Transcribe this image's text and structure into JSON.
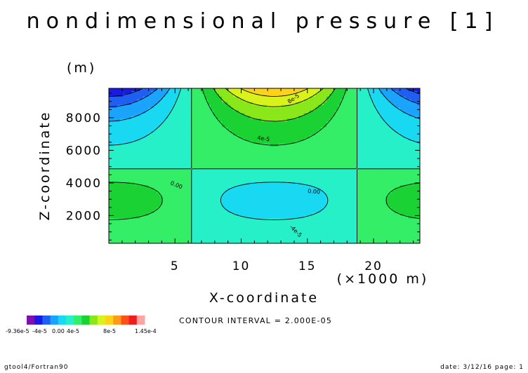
{
  "chart_data": {
    "type": "contour",
    "title": "nondimensional pressure [1]",
    "xlabel": "X-coordinate",
    "x_unit": "(×1000 m)",
    "ylabel": "Z-coordinate",
    "y_unit": "(m)",
    "xlim": [
      0,
      23.5
    ],
    "ylim": [
      300,
      9800
    ],
    "x_ticks": [
      "5",
      "10",
      "15",
      "20"
    ],
    "y_ticks": [
      "2000",
      "4000",
      "6000",
      "8000"
    ],
    "contour_interval_text": "CONTOUR INTERVAL = 2.000E-05",
    "contour_labels": [
      "8e-5",
      "4e-5",
      "0.00",
      "0.00",
      "-4e-5"
    ],
    "colorbar": {
      "min_label": "-9.36e-5",
      "max_label": "1.45e-4",
      "mid_labels": [
        "-4e-5",
        "0.00",
        "4e-5",
        "8e-5"
      ],
      "colors": [
        "#7f0fb0",
        "#1a1ae6",
        "#1f5ff2",
        "#1aa3ff",
        "#19d9f2",
        "#26f0c8",
        "#33ee66",
        "#1ad233",
        "#8ae81a",
        "#d8f21a",
        "#ffd21a",
        "#ff9a1a",
        "#ff5019",
        "#ef1e1e",
        "#ffa3a3"
      ]
    }
  },
  "footer": {
    "left": "gtool4/Fortran90",
    "right": "date: 3/12/16 page: 1"
  }
}
